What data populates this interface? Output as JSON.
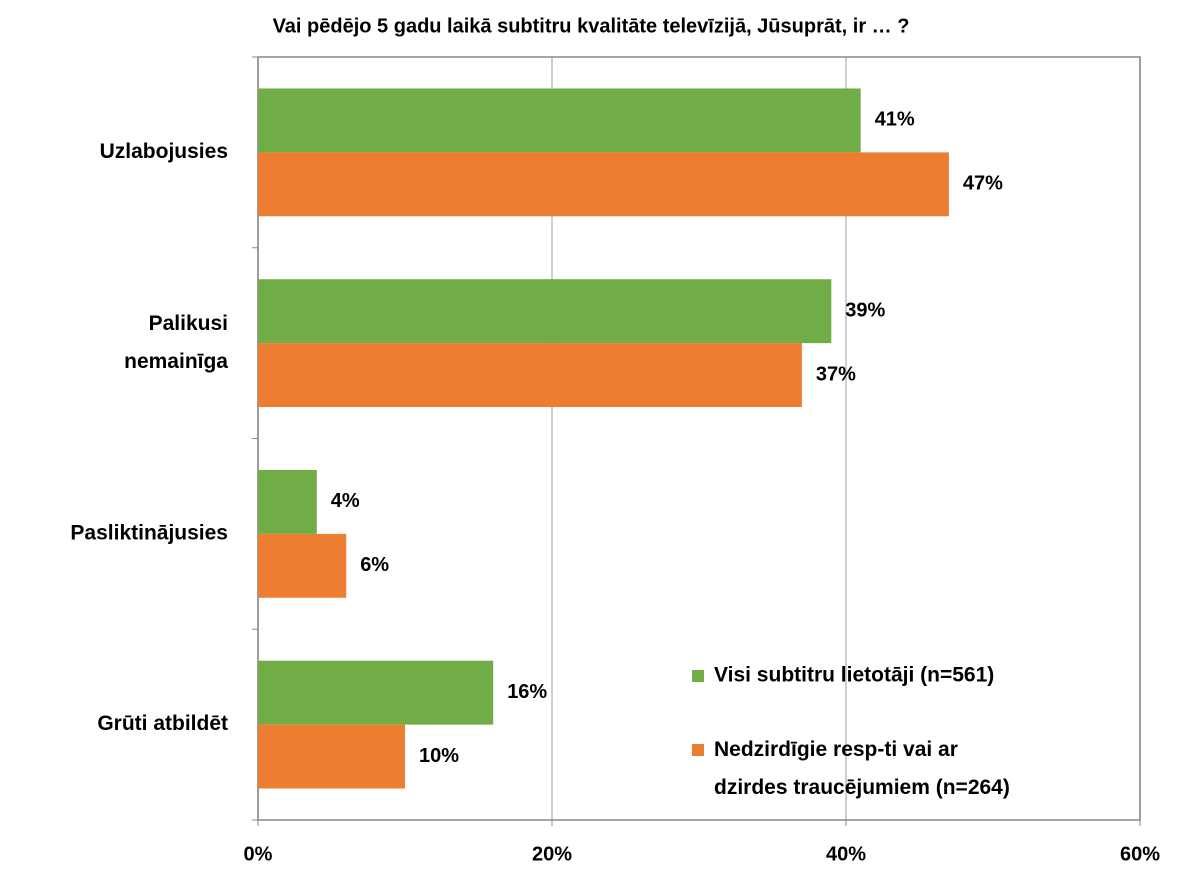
{
  "chart_data": {
    "type": "bar",
    "orientation": "horizontal",
    "title": "Vai pēdējo 5 gadu laikā subtitru kvalitāte televīzijā, Jūsuprāt, ir … ?",
    "categories": [
      "Uzlabojusies",
      "Palikusi\nnemainīga",
      "Pasliktinājusies",
      "Grūti atbildēt"
    ],
    "series": [
      {
        "name": "Visi subtitru lietotāji (n=561)",
        "color": "#70ad47",
        "values": [
          41,
          39,
          4,
          16
        ],
        "value_labels": [
          "41%",
          "39%",
          "4%",
          "16%"
        ]
      },
      {
        "name": "Nedzirdīgie resp-ti vai ar\ndzirdes traucējumiem (n=264)",
        "color": "#ed7d31",
        "values": [
          47,
          37,
          6,
          10
        ],
        "value_labels": [
          "47%",
          "37%",
          "6%",
          "10%"
        ]
      }
    ],
    "xlim": [
      0,
      60
    ],
    "xticks": [
      {
        "value": 0,
        "label": "0%"
      },
      {
        "value": 20,
        "label": "20%"
      },
      {
        "value": 40,
        "label": "40%"
      },
      {
        "value": 60,
        "label": "60%"
      }
    ],
    "grid": true,
    "legend": "lower right"
  }
}
